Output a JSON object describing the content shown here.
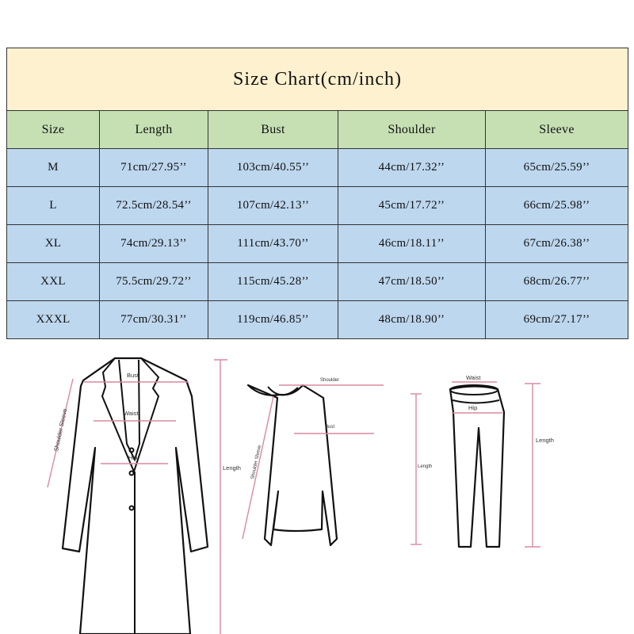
{
  "title": "Size Chart(cm/inch)",
  "columns": [
    "Size",
    "Length",
    "Bust",
    "Shoulder",
    "Sleeve"
  ],
  "rows": [
    [
      "M",
      "71cm/27.95’’",
      "103cm/40.55’’",
      "44cm/17.32’’",
      "65cm/25.59’’"
    ],
    [
      "L",
      "72.5cm/28.54’’",
      "107cm/42.13’’",
      "45cm/17.72’’",
      "66cm/25.98’’"
    ],
    [
      "XL",
      "74cm/29.13’’",
      "111cm/43.70’’",
      "46cm/18.11’’",
      "67cm/26.38’’"
    ],
    [
      "XXL",
      "75.5cm/29.72’’",
      "115cm/45.28’’",
      "47cm/18.50’’",
      "68cm/26.77’’"
    ],
    [
      "XXXL",
      "77cm/30.31’’",
      "119cm/46.85’’",
      "48cm/18.90’’",
      "69cm/27.17’’"
    ]
  ],
  "diagram": {
    "coat": {
      "bust": "Bust",
      "waist": "Waist",
      "hip": "Hip",
      "sleeve": "Shoulder Sleeve",
      "length": "Length"
    },
    "sweater": {
      "shoulder": "Shoulder",
      "bust": "Bust",
      "sleeve": "Shoulder Sleeve",
      "length": "Length"
    },
    "pants": {
      "waist": "Waist",
      "hip": "Hip",
      "length": "Length"
    }
  },
  "colors": {
    "title_bg": "#fdf1cf",
    "header_bg": "#c6e0b4",
    "row_bg": "#bdd7ee",
    "measure_line": "#d98a9e"
  }
}
